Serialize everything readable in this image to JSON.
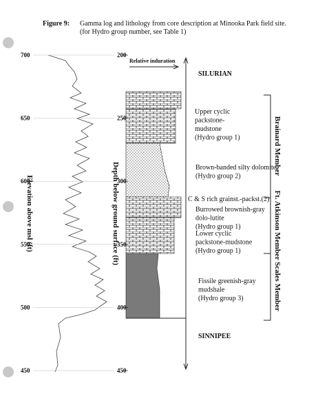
{
  "caption": {
    "label": "Figure 9:",
    "text": "Gamma log and lithology from core description at Minooka Park field site.",
    "note": "(for Hydro group number, see Table 1)"
  },
  "elevation_axis": {
    "title": "Elevation above msl (ft)",
    "ticks": [
      700,
      650,
      600,
      550,
      500,
      450
    ]
  },
  "depth_axis": {
    "title": "Depth below ground surface (ft)",
    "ticks": [
      200,
      250,
      300,
      350,
      400,
      450
    ]
  },
  "induration_label": "Relative induration",
  "formations": {
    "top": "SILURIAN",
    "bottom": "SINNIPEE"
  },
  "lithology": [
    {
      "lines": [
        "Upper cyclic",
        "packstone-",
        "mudstone",
        "(Hydro group 1)"
      ]
    },
    {
      "lines": [
        "Brown-banded silty dolomite",
        "(Hydro group 2)"
      ]
    },
    {
      "lines": [
        "C & S rich grainst.-packst.(2)"
      ]
    },
    {
      "lines": [
        "Burrowed brownish-gray",
        "dolo-lutite",
        "(Hydro group 1)"
      ]
    },
    {
      "lines": [
        "Lower cyclic",
        "packstone-mudstone",
        "(Hydro group 1)"
      ]
    },
    {
      "lines": [
        "Fissile greenish-gray",
        "mudshale",
        "(Hydro group 3)"
      ]
    }
  ],
  "members": [
    "Brainard Member",
    "Ft. Atkinson Member",
    "Scales Member"
  ]
}
